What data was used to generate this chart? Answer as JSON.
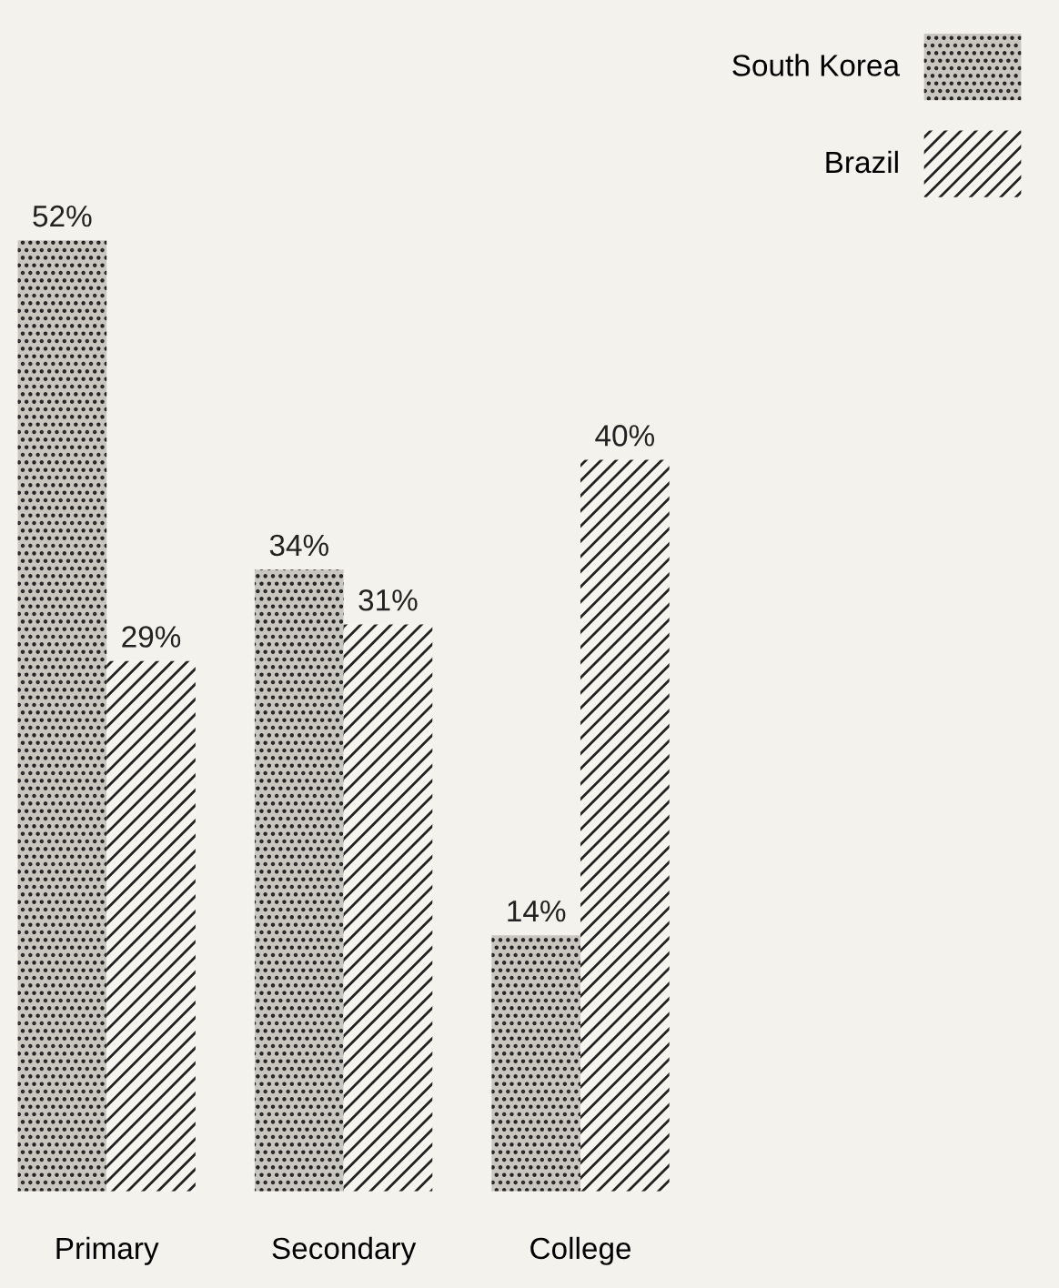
{
  "chart_data": {
    "type": "bar",
    "categories": [
      "Primary",
      "Secondary",
      "College"
    ],
    "series": [
      {
        "name": "South Korea",
        "color": "#c9c6c0",
        "values": [
          52,
          34,
          14
        ],
        "value_labels": [
          "52%",
          "34%",
          "14%"
        ]
      },
      {
        "name": "Brazil",
        "color": "#f6f4ee",
        "values": [
          29,
          31,
          40
        ],
        "value_labels": [
          "29%",
          "31%",
          "40%"
        ]
      }
    ],
    "legend": "top right",
    "tick_labels": "x",
    "grid": false
  }
}
